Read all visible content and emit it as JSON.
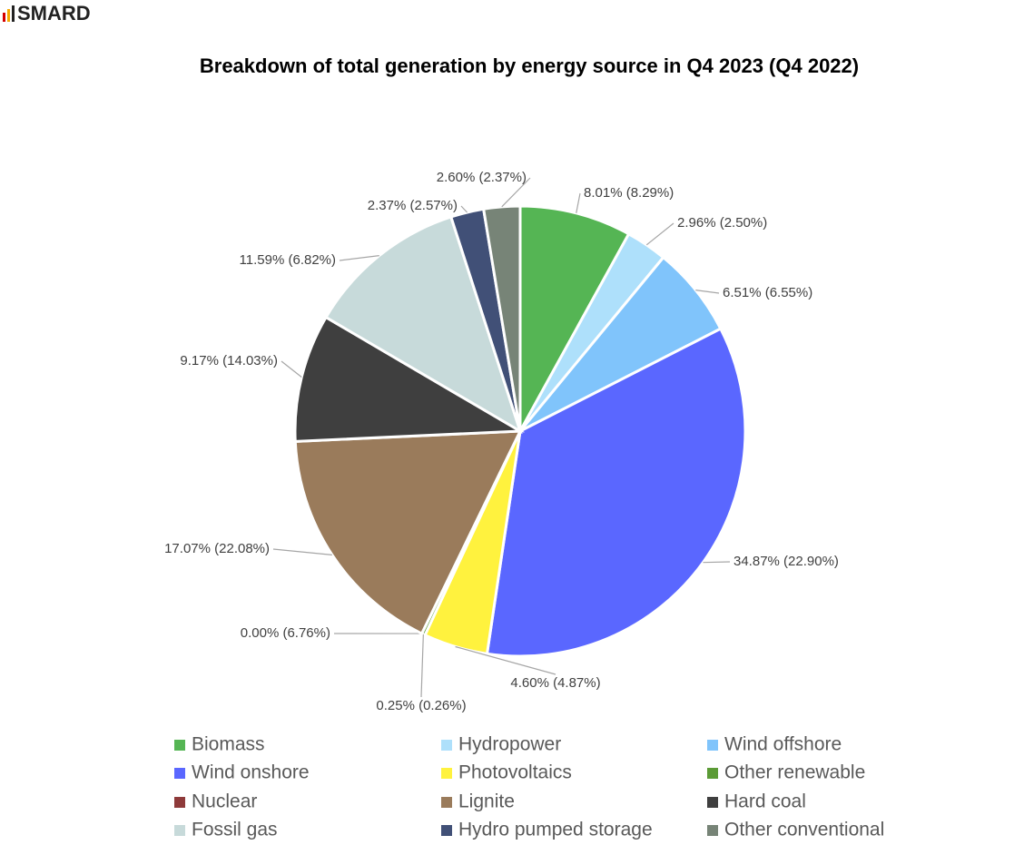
{
  "header": {
    "logo": "SMARD"
  },
  "chart_data": {
    "type": "pie",
    "title": "Breakdown of total generation by energy source in Q4 2023 (Q4 2022)",
    "categories": [
      "Biomass",
      "Hydropower",
      "Wind offshore",
      "Wind onshore",
      "Photovoltaics",
      "Other renewable",
      "Nuclear",
      "Lignite",
      "Hard coal",
      "Fossil gas",
      "Hydro pumped storage",
      "Other conventional"
    ],
    "values": [
      8.01,
      2.96,
      6.51,
      34.87,
      4.6,
      0.25,
      0.0,
      17.07,
      9.17,
      11.59,
      2.37,
      2.6
    ],
    "value_labels": [
      "8.01% (8.29%)",
      "2.96% (2.50%)",
      "6.51% (6.55%)",
      "34.87% (22.90%)",
      "4.60% (4.87%)",
      "0.25% (0.26%)",
      "0.00% (6.76%)",
      "17.07% (22.08%)",
      "9.17% (14.03%)",
      "11.59% (6.82%)",
      "2.37% (2.57%)",
      "2.60% (2.37%)"
    ],
    "colors": [
      "#55b554",
      "#aee0fb",
      "#80c4fb",
      "#5a67ff",
      "#fff23e",
      "#5b9b36",
      "#8e3a3a",
      "#9a7b5b",
      "#3f3f3f",
      "#c7dada",
      "#415077",
      "#778477"
    ],
    "legend": "bottom"
  }
}
